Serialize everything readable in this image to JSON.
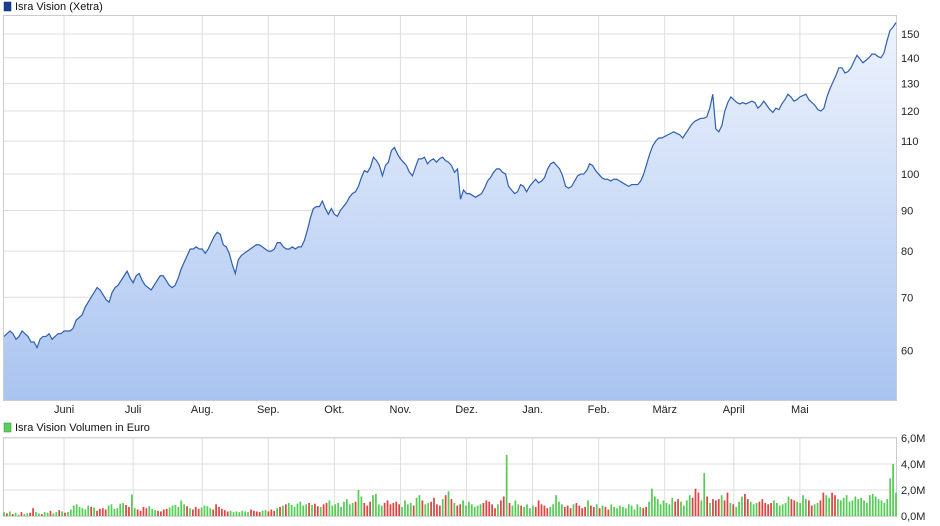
{
  "chart_data": [
    {
      "type": "area",
      "legend": "Isra Vision (Xetra)",
      "y_scale": "log",
      "ylim": [
        52,
        158
      ],
      "y_ticks": [
        60,
        70,
        80,
        90,
        100,
        110,
        120,
        130,
        140,
        150
      ],
      "x_ticks": [
        "Juni",
        "Juli",
        "Aug.",
        "Sep.",
        "Okt.",
        "Nov.",
        "Dez.",
        "Jan.",
        "Feb.",
        "März",
        "April",
        "Mai"
      ],
      "grid": true,
      "series": [
        {
          "name": "Isra Vision (Xetra)",
          "values": [
            62.5,
            63.0,
            63.5,
            63.0,
            62.0,
            62.5,
            63.5,
            63.0,
            62.5,
            61.5,
            61.5,
            60.5,
            62.0,
            62.5,
            62.5,
            63.0,
            62.0,
            62.5,
            63.0,
            63.0,
            63.5,
            63.5,
            63.5,
            64.0,
            65.5,
            66.0,
            66.5,
            68.0,
            69.0,
            70.0,
            71.0,
            72.0,
            71.5,
            70.5,
            69.5,
            69.0,
            71.0,
            72.0,
            72.5,
            73.5,
            74.5,
            75.5,
            74.0,
            73.0,
            74.5,
            75.0,
            73.5,
            72.5,
            72.0,
            71.5,
            72.5,
            73.5,
            74.5,
            74.5,
            73.5,
            72.5,
            72.0,
            72.5,
            74.0,
            76.0,
            77.5,
            79.0,
            80.5,
            80.5,
            81.0,
            80.5,
            80.5,
            79.5,
            80.5,
            82.0,
            83.5,
            84.5,
            84.0,
            81.5,
            81.0,
            79.5,
            77.0,
            75.0,
            78.0,
            79.0,
            79.5,
            80.0,
            80.5,
            81.0,
            81.5,
            81.5,
            81.0,
            80.5,
            80.0,
            80.0,
            80.5,
            82.0,
            82.0,
            81.0,
            80.5,
            80.5,
            81.0,
            80.5,
            81.0,
            81.0,
            82.5,
            85.0,
            88.0,
            90.5,
            91.0,
            91.0,
            92.5,
            90.5,
            89.0,
            90.5,
            89.0,
            88.5,
            90.0,
            91.0,
            92.0,
            93.5,
            94.5,
            95.0,
            96.5,
            99.0,
            101.0,
            100.5,
            102.0,
            105.0,
            104.0,
            102.5,
            99.5,
            102.5,
            103.5,
            107.0,
            108.0,
            106.0,
            104.5,
            103.5,
            102.5,
            100.5,
            99.5,
            102.0,
            104.5,
            104.5,
            105.0,
            103.0,
            104.0,
            104.5,
            103.5,
            104.5,
            105.0,
            104.0,
            103.5,
            102.5,
            100.5,
            101.5,
            93.0,
            95.5,
            94.5,
            94.5,
            94.0,
            93.5,
            94.0,
            94.5,
            96.0,
            98.0,
            99.0,
            100.5,
            101.5,
            101.5,
            100.5,
            100.0,
            96.5,
            95.5,
            94.5,
            95.0,
            97.0,
            96.5,
            95.0,
            96.5,
            97.5,
            98.5,
            97.5,
            98.0,
            99.0,
            101.5,
            103.0,
            103.5,
            102.5,
            101.5,
            99.5,
            96.5,
            96.0,
            96.5,
            98.0,
            99.5,
            100.0,
            100.0,
            101.0,
            103.0,
            102.5,
            101.0,
            100.0,
            99.0,
            98.5,
            98.5,
            98.0,
            98.5,
            98.5,
            98.0,
            97.5,
            97.0,
            96.5,
            97.0,
            97.0,
            97.0,
            98.0,
            100.0,
            103.0,
            106.0,
            108.5,
            110.0,
            111.0,
            111.0,
            111.5,
            112.0,
            112.5,
            113.0,
            112.5,
            112.0,
            111.0,
            112.5,
            114.0,
            115.5,
            116.5,
            117.0,
            117.5,
            117.5,
            118.0,
            121.0,
            126.0,
            114.0,
            113.0,
            115.0,
            120.0,
            123.0,
            125.0,
            124.0,
            123.0,
            122.5,
            123.0,
            122.5,
            123.0,
            123.5,
            123.0,
            121.0,
            122.0,
            123.5,
            122.0,
            120.5,
            119.5,
            121.0,
            120.5,
            122.5,
            124.0,
            126.0,
            125.0,
            123.5,
            124.0,
            125.0,
            125.5,
            126.0,
            124.0,
            123.0,
            122.0,
            120.5,
            120.0,
            121.0,
            125.0,
            128.0,
            130.5,
            133.0,
            136.0,
            136.0,
            134.0,
            134.5,
            136.0,
            138.5,
            141.0,
            139.5,
            138.0,
            139.0,
            140.0,
            141.5,
            141.5,
            140.5,
            140.0,
            142.0,
            147.0,
            151.5,
            153.0,
            155.0
          ]
        }
      ]
    },
    {
      "type": "bar",
      "legend": "Isra Vision Volumen in Euro",
      "ylim": [
        0,
        6
      ],
      "y_ticks": [
        0,
        2,
        4,
        6
      ],
      "y_tick_labels": [
        "0,0M",
        "2,0M",
        "4,0M",
        "6,0M"
      ],
      "unit": "M Euro",
      "grid": true,
      "up_color": "#55cc55",
      "down_color": "#dd4444",
      "values": [
        0.3,
        0.2,
        0.35,
        0.15,
        0.25,
        0.1,
        0.3,
        0.15,
        0.2,
        0.25,
        0.6,
        0.3,
        0.2,
        0.15,
        0.3,
        0.25,
        0.4,
        0.2,
        0.3,
        0.45,
        0.35,
        0.25,
        0.3,
        0.5,
        0.8,
        0.9,
        0.7,
        0.6,
        0.5,
        0.8,
        0.7,
        0.65,
        0.4,
        0.55,
        0.6,
        0.5,
        0.8,
        0.9,
        0.55,
        0.6,
        0.95,
        1.0,
        0.85,
        0.7,
        1.65,
        0.6,
        0.5,
        0.4,
        0.7,
        0.6,
        0.75,
        0.55,
        0.45,
        0.4,
        0.35,
        0.5,
        0.55,
        0.65,
        0.8,
        0.85,
        0.7,
        1.2,
        0.9,
        0.75,
        0.6,
        0.5,
        0.7,
        0.55,
        0.65,
        0.8,
        0.75,
        0.6,
        0.5,
        0.9,
        0.7,
        0.55,
        0.45,
        0.35,
        0.4,
        0.3,
        0.35,
        0.3,
        0.4,
        0.35,
        0.3,
        0.5,
        0.4,
        0.35,
        0.3,
        0.4,
        0.45,
        0.35,
        0.5,
        0.4,
        0.6,
        0.7,
        0.8,
        0.9,
        1.0,
        0.85,
        0.7,
        0.95,
        1.1,
        0.8,
        0.9,
        1.0,
        0.85,
        0.95,
        0.75,
        0.7,
        0.9,
        1.0,
        1.2,
        0.8,
        0.9,
        1.0,
        0.7,
        1.1,
        1.3,
        0.9,
        1.0,
        1.1,
        2.0,
        1.5,
        1.0,
        0.8,
        1.1,
        1.6,
        1.7,
        0.9,
        0.8,
        1.0,
        1.2,
        0.9,
        1.0,
        1.1,
        0.9,
        0.7,
        1.2,
        0.9,
        1.0,
        0.8,
        1.4,
        1.6,
        1.2,
        0.9,
        1.0,
        1.1,
        1.4,
        0.9,
        0.8,
        1.3,
        1.6,
        1.9,
        1.3,
        1.0,
        0.8,
        0.9,
        1.2,
        0.8,
        1.1,
        0.9,
        0.7,
        0.8,
        0.9,
        1.0,
        1.2,
        1.1,
        0.9,
        0.6,
        0.9,
        1.2,
        1.5,
        4.7,
        1.0,
        0.8,
        1.2,
        0.9,
        0.8,
        0.7,
        0.9,
        0.6,
        0.8,
        0.7,
        1.2,
        0.9,
        0.8,
        0.6,
        0.7,
        0.9,
        1.6,
        1.1,
        0.9,
        0.7,
        0.8,
        0.6,
        0.9,
        1.0,
        0.8,
        0.6,
        0.7,
        1.2,
        0.8,
        0.7,
        0.9,
        0.6,
        0.8,
        0.7,
        0.5,
        0.9,
        0.7,
        0.6,
        0.8,
        0.7,
        0.6,
        0.9,
        0.8,
        0.5,
        0.9,
        0.7,
        0.6,
        0.7,
        1.1,
        2.1,
        1.5,
        1.3,
        0.9,
        1.2,
        1.0,
        0.9,
        1.4,
        1.1,
        1.3,
        1.1,
        0.8,
        1.2,
        1.6,
        1.4,
        2.1,
        1.8,
        1.2,
        3.3,
        1.5,
        1.0,
        1.3,
        1.2,
        1.3,
        1.6,
        1.2,
        1.8,
        1.0,
        0.9,
        0.7,
        1.1,
        1.5,
        1.7,
        1.3,
        1.1,
        0.9,
        1.0,
        1.1,
        1.3,
        1.0,
        0.9,
        1.0,
        1.2,
        1.0,
        0.8,
        0.9,
        1.0,
        1.5,
        1.3,
        1.2,
        1.1,
        1.0,
        1.6,
        1.3,
        1.2,
        0.8,
        0.9,
        1.0,
        1.2,
        1.8,
        1.6,
        1.4,
        1.8,
        1.6,
        1.3,
        1.2,
        1.4,
        1.6,
        1.1,
        1.2,
        1.5,
        1.3,
        1.4,
        1.2,
        1.0,
        1.6,
        1.7,
        1.5,
        1.3,
        1.2,
        1.0,
        1.3,
        2.9,
        4.0,
        1.8
      ],
      "directions": [
        "up",
        "down",
        "up",
        "down",
        "up",
        "up",
        "down",
        "up",
        "up",
        "down",
        "down",
        "up",
        "up",
        "down",
        "up",
        "up",
        "down",
        "up",
        "up",
        "down",
        "up",
        "down",
        "up",
        "up",
        "up",
        "up",
        "up",
        "up",
        "up",
        "up",
        "down",
        "up",
        "down",
        "down",
        "down",
        "down",
        "up",
        "up",
        "up",
        "up",
        "up",
        "up",
        "down",
        "down",
        "up",
        "up",
        "down",
        "down",
        "down",
        "down",
        "up",
        "up",
        "up",
        "down",
        "down",
        "down",
        "down",
        "up",
        "up",
        "up",
        "up",
        "up",
        "up",
        "down",
        "up",
        "down",
        "down",
        "down",
        "up",
        "up",
        "up",
        "up",
        "down",
        "down",
        "down",
        "down",
        "down",
        "down",
        "up",
        "up",
        "up",
        "up",
        "up",
        "up",
        "up",
        "down",
        "down",
        "down",
        "down",
        "up",
        "up",
        "down",
        "down",
        "down",
        "up",
        "down",
        "up",
        "down",
        "up",
        "up",
        "up",
        "up",
        "up",
        "up",
        "up",
        "down",
        "up",
        "down",
        "down",
        "up",
        "down",
        "down",
        "up",
        "up",
        "up",
        "up",
        "up",
        "up",
        "up",
        "up",
        "up",
        "down",
        "up",
        "up",
        "down",
        "down",
        "down",
        "up",
        "up",
        "up",
        "up",
        "down",
        "down",
        "down",
        "down",
        "down",
        "down",
        "up",
        "up",
        "up",
        "up",
        "down",
        "up",
        "up",
        "down",
        "up",
        "up",
        "down",
        "down",
        "down",
        "down",
        "up",
        "down",
        "up",
        "down",
        "up",
        "down",
        "down",
        "up",
        "up",
        "up",
        "up",
        "up",
        "up",
        "up",
        "down",
        "down",
        "down",
        "down",
        "down",
        "up",
        "down",
        "down",
        "up",
        "down",
        "up",
        "up",
        "up",
        "down",
        "up",
        "up",
        "up",
        "up",
        "down",
        "down",
        "down",
        "down",
        "down",
        "up",
        "up",
        "up",
        "up",
        "up",
        "down",
        "down",
        "down",
        "up",
        "down",
        "down",
        "down",
        "down",
        "up",
        "down",
        "down",
        "up",
        "down",
        "up",
        "down",
        "down",
        "up",
        "up",
        "up",
        "up",
        "up",
        "up",
        "up",
        "up",
        "up",
        "up",
        "up",
        "down",
        "down",
        "up",
        "up",
        "up",
        "up",
        "up",
        "up",
        "up",
        "up",
        "up",
        "down",
        "down",
        "up",
        "up",
        "up",
        "up",
        "down",
        "down",
        "down",
        "up",
        "up",
        "down",
        "up",
        "down",
        "down",
        "down",
        "up",
        "down",
        "down",
        "up",
        "down",
        "up",
        "up",
        "up",
        "down",
        "down",
        "up",
        "up",
        "up",
        "down",
        "down",
        "down",
        "down",
        "down",
        "up",
        "up",
        "up",
        "up",
        "up",
        "up",
        "down",
        "down",
        "up",
        "up",
        "up",
        "up",
        "down",
        "down",
        "up",
        "up",
        "down",
        "down",
        "up",
        "up",
        "down",
        "down",
        "up",
        "up",
        "up",
        "up",
        "up"
      ]
    }
  ]
}
